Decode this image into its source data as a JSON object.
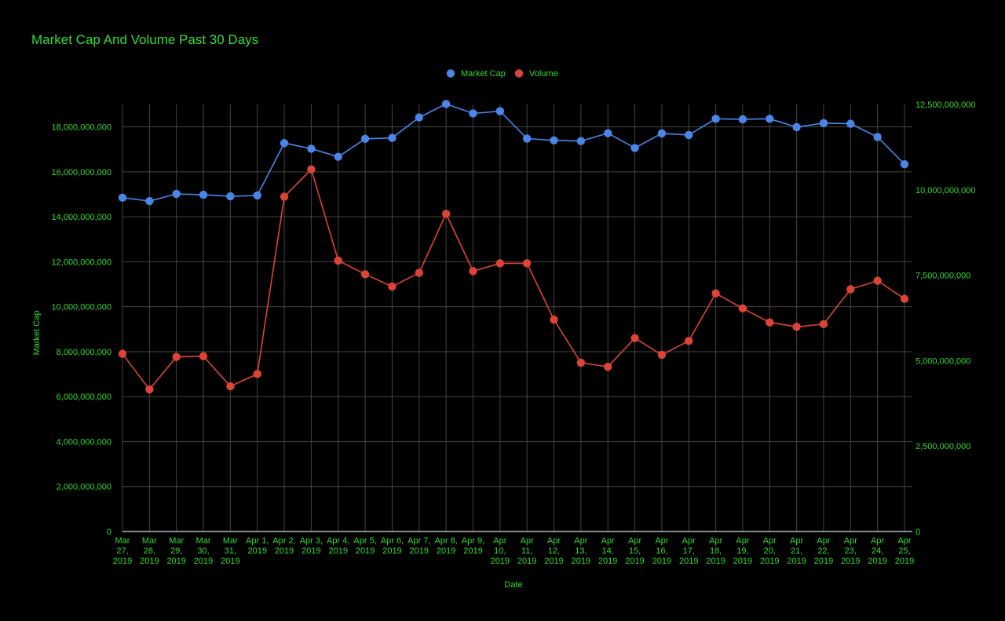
{
  "chart_data": {
    "type": "line",
    "title": "Market Cap And Volume Past 30 Days",
    "xlabel": "Date",
    "ylabel_left": "Market Cap",
    "ylabel_right": "",
    "categories": [
      "Mar 27, 2019",
      "Mar 28, 2019",
      "Mar 29, 2019",
      "Mar 30, 2019",
      "Mar 31, 2019",
      "Apr 1, 2019",
      "Apr 2, 2019",
      "Apr 3, 2019",
      "Apr 4, 2019",
      "Apr 5, 2019",
      "Apr 6, 2019",
      "Apr 7, 2019",
      "Apr 8, 2019",
      "Apr 9, 2019",
      "Apr 10, 2019",
      "Apr 11, 2019",
      "Apr 12, 2019",
      "Apr 13, 2019",
      "Apr 14, 2019",
      "Apr 15, 2019",
      "Apr 16, 2019",
      "Apr 17, 2019",
      "Apr 18, 2019",
      "Apr 19, 2019",
      "Apr 20, 2019",
      "Apr 21, 2019",
      "Apr 22, 2019",
      "Apr 23, 2019",
      "Apr 24, 2019",
      "Apr 25, 2019"
    ],
    "tick_labels": [
      [
        "Mar",
        "27,",
        "2019"
      ],
      [
        "Mar",
        "28,",
        "2019"
      ],
      [
        "Mar",
        "29,",
        "2019"
      ],
      [
        "Mar",
        "30,",
        "2019"
      ],
      [
        "Mar",
        "31,",
        "2019"
      ],
      [
        "Apr 1,",
        "2019"
      ],
      [
        "Apr 2,",
        "2019"
      ],
      [
        "Apr 3,",
        "2019"
      ],
      [
        "Apr 4,",
        "2019"
      ],
      [
        "Apr 5,",
        "2019"
      ],
      [
        "Apr 6,",
        "2019"
      ],
      [
        "Apr 7,",
        "2019"
      ],
      [
        "Apr 8,",
        "2019"
      ],
      [
        "Apr 9,",
        "2019"
      ],
      [
        "Apr",
        "10,",
        "2019"
      ],
      [
        "Apr",
        "11,",
        "2019"
      ],
      [
        "Apr",
        "12,",
        "2019"
      ],
      [
        "Apr",
        "13,",
        "2019"
      ],
      [
        "Apr",
        "14,",
        "2019"
      ],
      [
        "Apr",
        "15,",
        "2019"
      ],
      [
        "Apr",
        "16,",
        "2019"
      ],
      [
        "Apr",
        "17,",
        "2019"
      ],
      [
        "Apr",
        "18,",
        "2019"
      ],
      [
        "Apr",
        "19,",
        "2019"
      ],
      [
        "Apr",
        "20,",
        "2019"
      ],
      [
        "Apr",
        "21,",
        "2019"
      ],
      [
        "Apr",
        "22,",
        "2019"
      ],
      [
        "Apr",
        "23,",
        "2019"
      ],
      [
        "Apr",
        "24,",
        "2019"
      ],
      [
        "Apr",
        "25,",
        "2019"
      ]
    ],
    "series": [
      {
        "name": "Market Cap",
        "axis": "left",
        "color": "#4a86e8",
        "values": [
          14850000000,
          14700000000,
          15020000000,
          14980000000,
          14910000000,
          14950000000,
          17280000000,
          17030000000,
          16670000000,
          17470000000,
          17510000000,
          18420000000,
          19020000000,
          18600000000,
          18700000000,
          17480000000,
          17400000000,
          17370000000,
          17720000000,
          17060000000,
          17710000000,
          17640000000,
          18360000000,
          18340000000,
          18360000000,
          17990000000,
          18170000000,
          18140000000,
          17550000000,
          16340000000
        ]
      },
      {
        "name": "Volume",
        "axis": "right",
        "color": "#db4437",
        "values": [
          5200000000,
          4160000000,
          5110000000,
          5130000000,
          4250000000,
          4610000000,
          9800000000,
          10600000000,
          7930000000,
          7530000000,
          7170000000,
          7570000000,
          9300000000,
          7620000000,
          7850000000,
          7850000000,
          6200000000,
          4940000000,
          4820000000,
          5660000000,
          5170000000,
          5580000000,
          6970000000,
          6530000000,
          6120000000,
          5990000000,
          6070000000,
          7090000000,
          7340000000,
          6810000000
        ]
      }
    ],
    "y_left": {
      "lim": [
        0,
        19000000000
      ],
      "ticks": [
        0,
        2000000000,
        4000000000,
        6000000000,
        8000000000,
        10000000000,
        12000000000,
        14000000000,
        16000000000,
        18000000000
      ],
      "tick_labels": [
        "0",
        "2,000,000,000",
        "4,000,000,000",
        "6,000,000,000",
        "8,000,000,000",
        "10,000,000,000",
        "12,000,000,000",
        "14,000,000,000",
        "16,000,000,000",
        "18,000,000,000"
      ]
    },
    "y_right": {
      "lim": [
        0,
        12500000000
      ],
      "ticks": [
        0,
        2500000000,
        5000000000,
        7500000000,
        10000000000,
        12500000000
      ],
      "tick_labels": [
        "0",
        "2,500,000,000",
        "5,000,000,000",
        "7,500,000,000",
        "10,000,000,000",
        "12,500,000,000"
      ]
    },
    "grid": true,
    "legend_position": "top"
  },
  "colors": {
    "background": "#000000",
    "text": "#33dd33",
    "grid": "#444444",
    "baseline": "#dddddd"
  }
}
